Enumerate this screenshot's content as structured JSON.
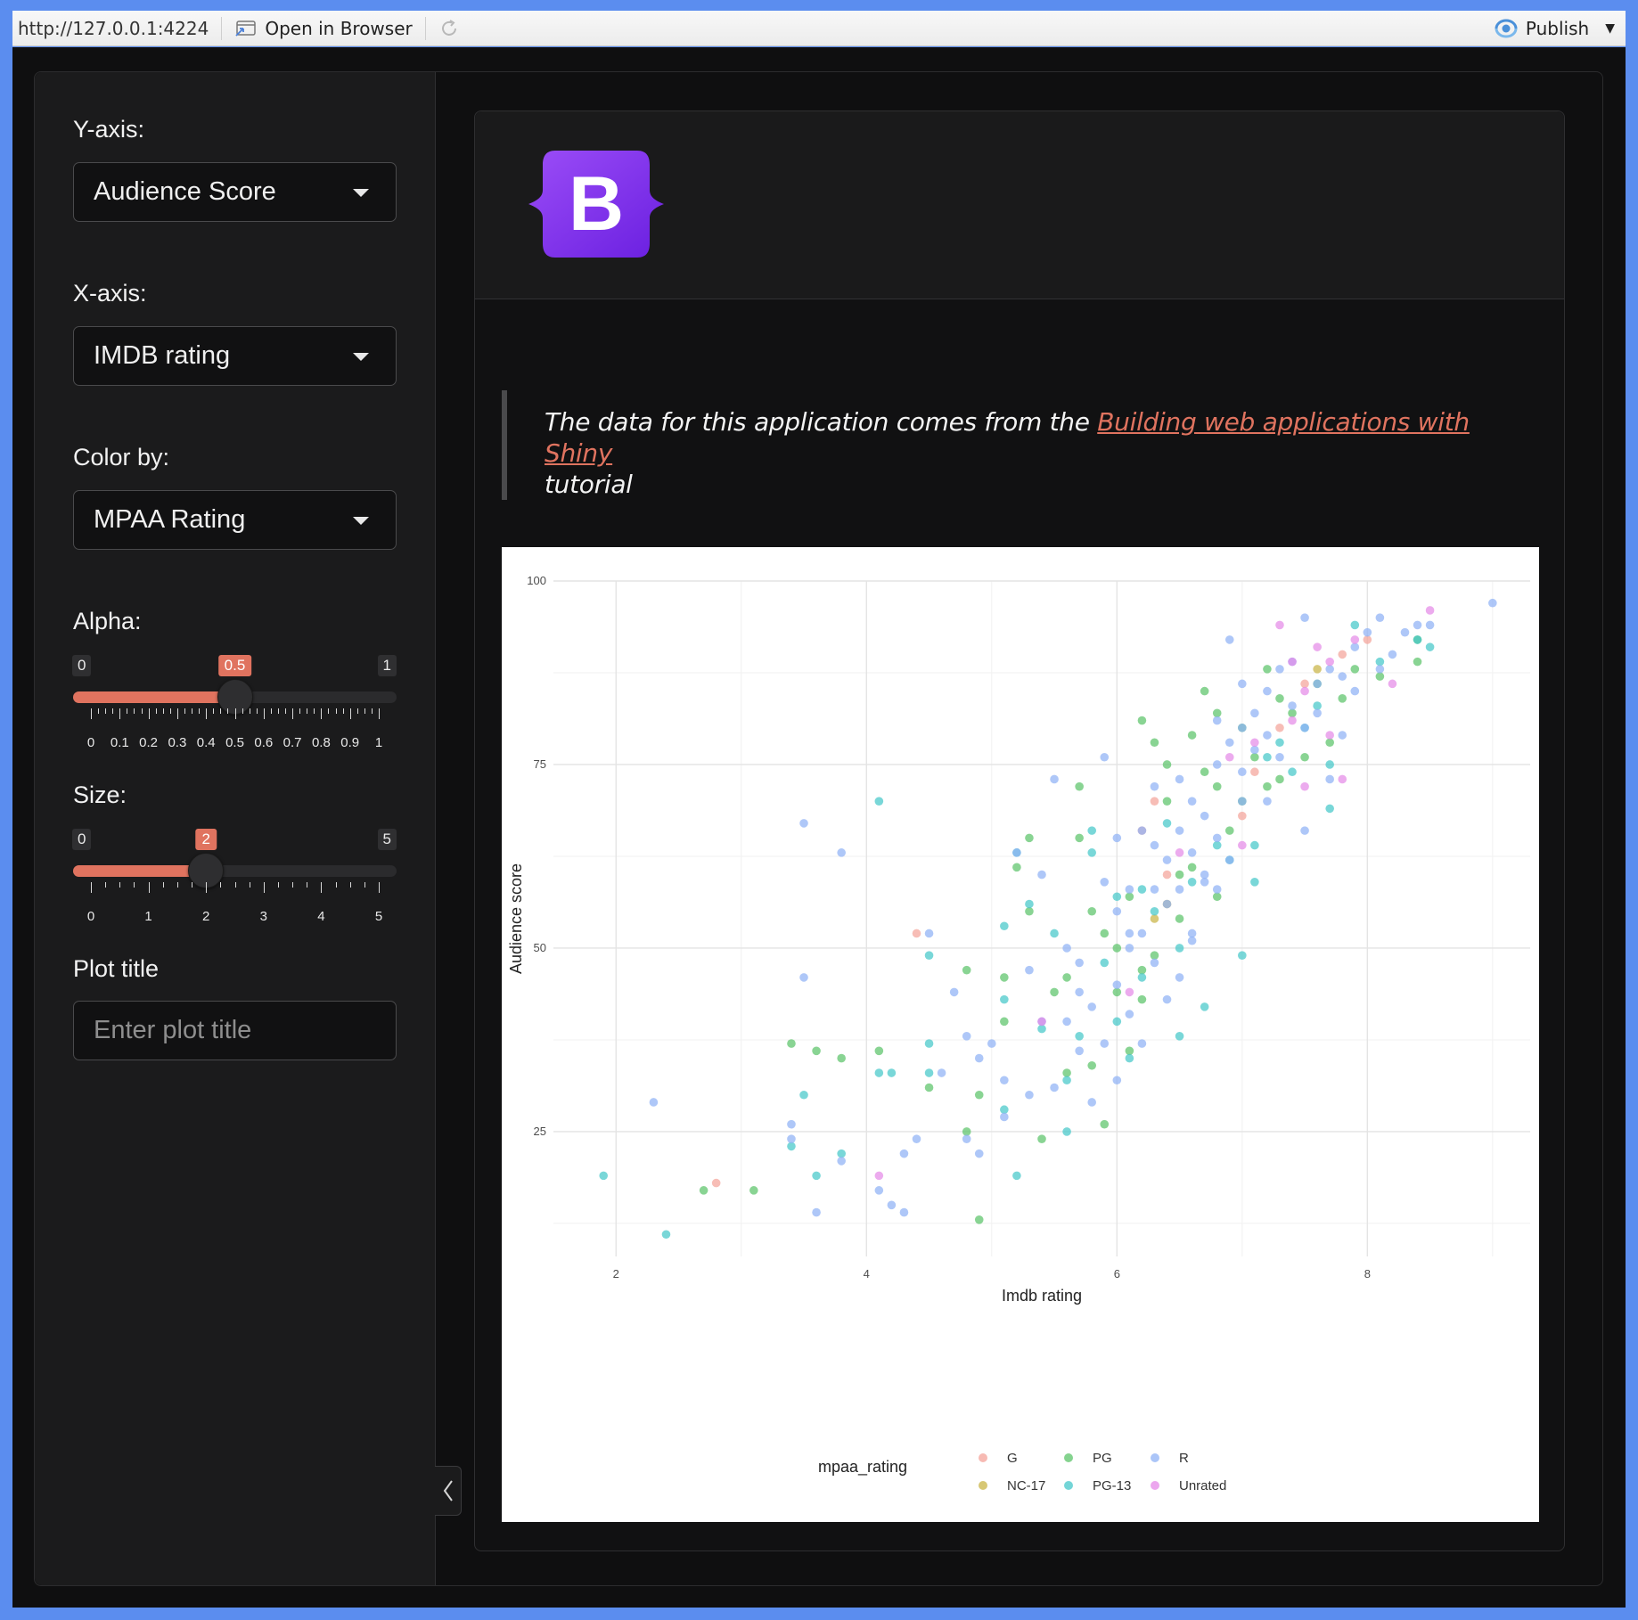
{
  "toolbar": {
    "url": "http://127.0.0.1:4224",
    "open_label": "Open in Browser",
    "publish_label": "Publish"
  },
  "sidebar": {
    "y_axis": {
      "label": "Y-axis:",
      "value": "Audience Score"
    },
    "x_axis": {
      "label": "X-axis:",
      "value": "IMDB rating"
    },
    "color_by": {
      "label": "Color by:",
      "value": "MPAA Rating"
    },
    "alpha": {
      "label": "Alpha:",
      "min": "0",
      "max": "1",
      "value": 0.5,
      "value_label": "0.5",
      "ticks": [
        "0",
        "0.1",
        "0.2",
        "0.3",
        "0.4",
        "0.5",
        "0.6",
        "0.7",
        "0.8",
        "0.9",
        "1"
      ]
    },
    "size": {
      "label": "Size:",
      "min": "0",
      "max": "5",
      "value": 2,
      "value_label": "2",
      "ticks": [
        "0",
        "1",
        "2",
        "3",
        "4",
        "5"
      ]
    },
    "plot_title": {
      "label": "Plot title",
      "placeholder": "Enter plot title",
      "value": ""
    }
  },
  "main": {
    "logo_letter": "B",
    "quote_text": "The data for this application comes from the ",
    "quote_link": "Building web applications with Shiny",
    "quote_tail": "tutorial"
  },
  "colors": {
    "accent": "#e0735f",
    "G": "#f4a39a",
    "NC-17": "#c9b445",
    "PG": "#5cc46a",
    "PG-13": "#45c7c9",
    "R": "#8fb2f5",
    "Unrated": "#e58ae8"
  },
  "chart_data": {
    "type": "scatter",
    "xlabel": "Imdb rating",
    "ylabel": "Audience score",
    "xlim": [
      1.5,
      9.3
    ],
    "ylim": [
      8,
      100
    ],
    "x_ticks": [
      2,
      4,
      6,
      8
    ],
    "y_ticks": [
      25,
      50,
      75,
      100
    ],
    "grid": true,
    "legend_title": "mpaa_rating",
    "legend_position": "bottom",
    "legend": [
      "G",
      "NC-17",
      "PG",
      "PG-13",
      "R",
      "Unrated"
    ],
    "series": [
      {
        "name": "G",
        "points": [
          [
            2.8,
            18
          ],
          [
            4.4,
            52
          ],
          [
            6.3,
            70
          ],
          [
            6.2,
            66
          ],
          [
            7.0,
            68
          ],
          [
            7.3,
            80
          ],
          [
            7.8,
            90
          ],
          [
            8.0,
            92
          ],
          [
            7.5,
            86
          ],
          [
            6.4,
            60
          ],
          [
            7.1,
            74
          ]
        ]
      },
      {
        "name": "NC-17",
        "points": [
          [
            6.4,
            56
          ],
          [
            6.3,
            54
          ],
          [
            7.6,
            88
          ]
        ]
      },
      {
        "name": "PG",
        "points": [
          [
            2.7,
            17
          ],
          [
            3.1,
            17
          ],
          [
            3.4,
            37
          ],
          [
            3.6,
            36
          ],
          [
            3.8,
            35
          ],
          [
            4.1,
            36
          ],
          [
            4.5,
            31
          ],
          [
            4.8,
            47
          ],
          [
            4.8,
            25
          ],
          [
            4.9,
            30
          ],
          [
            4.9,
            13
          ],
          [
            5.1,
            46
          ],
          [
            5.1,
            40
          ],
          [
            5.2,
            61
          ],
          [
            5.3,
            65
          ],
          [
            5.3,
            55
          ],
          [
            5.4,
            24
          ],
          [
            5.5,
            44
          ],
          [
            5.6,
            33
          ],
          [
            5.7,
            72
          ],
          [
            5.7,
            65
          ],
          [
            5.8,
            34
          ],
          [
            5.8,
            55
          ],
          [
            5.9,
            26
          ],
          [
            5.9,
            52
          ],
          [
            6.0,
            44
          ],
          [
            6.1,
            36
          ],
          [
            6.1,
            57
          ],
          [
            6.2,
            43
          ],
          [
            6.2,
            81
          ],
          [
            6.3,
            78
          ],
          [
            6.4,
            75
          ],
          [
            6.4,
            70
          ],
          [
            6.5,
            60
          ],
          [
            6.5,
            54
          ],
          [
            6.6,
            79
          ],
          [
            6.6,
            61
          ],
          [
            6.7,
            74
          ],
          [
            6.7,
            85
          ],
          [
            6.8,
            82
          ],
          [
            6.8,
            72
          ],
          [
            6.9,
            66
          ],
          [
            7.0,
            70
          ],
          [
            7.0,
            80
          ],
          [
            7.1,
            76
          ],
          [
            7.2,
            88
          ],
          [
            7.3,
            84
          ],
          [
            7.3,
            73
          ],
          [
            7.4,
            82
          ],
          [
            7.5,
            76
          ],
          [
            7.6,
            86
          ],
          [
            7.7,
            78
          ],
          [
            7.8,
            84
          ],
          [
            7.9,
            88
          ],
          [
            8.1,
            87
          ],
          [
            8.4,
            89
          ],
          [
            8.4,
            92
          ],
          [
            6.0,
            50
          ],
          [
            6.2,
            47
          ],
          [
            6.3,
            49
          ],
          [
            5.6,
            46
          ],
          [
            6.8,
            57
          ],
          [
            7.2,
            72
          ]
        ]
      },
      {
        "name": "PG-13",
        "points": [
          [
            1.9,
            19
          ],
          [
            2.4,
            11
          ],
          [
            3.4,
            23
          ],
          [
            3.5,
            30
          ],
          [
            3.6,
            19
          ],
          [
            3.8,
            22
          ],
          [
            4.1,
            70
          ],
          [
            4.1,
            33
          ],
          [
            4.2,
            33
          ],
          [
            4.5,
            49
          ],
          [
            4.5,
            37
          ],
          [
            4.5,
            33
          ],
          [
            5.1,
            53
          ],
          [
            5.1,
            43
          ],
          [
            5.1,
            28
          ],
          [
            5.2,
            63
          ],
          [
            5.2,
            19
          ],
          [
            5.3,
            56
          ],
          [
            5.4,
            39
          ],
          [
            5.5,
            52
          ],
          [
            5.6,
            32
          ],
          [
            5.6,
            25
          ],
          [
            5.7,
            38
          ],
          [
            5.8,
            66
          ],
          [
            5.8,
            63
          ],
          [
            5.9,
            48
          ],
          [
            6.0,
            57
          ],
          [
            6.0,
            40
          ],
          [
            6.1,
            35
          ],
          [
            6.2,
            58
          ],
          [
            6.2,
            46
          ],
          [
            6.3,
            55
          ],
          [
            6.4,
            67
          ],
          [
            6.5,
            50
          ],
          [
            6.5,
            38
          ],
          [
            6.6,
            59
          ],
          [
            6.7,
            42
          ],
          [
            6.8,
            64
          ],
          [
            6.9,
            62
          ],
          [
            7.0,
            49
          ],
          [
            7.1,
            59
          ],
          [
            7.1,
            64
          ],
          [
            7.2,
            76
          ],
          [
            7.3,
            78
          ],
          [
            7.4,
            74
          ],
          [
            7.5,
            80
          ],
          [
            7.6,
            83
          ],
          [
            7.7,
            69
          ],
          [
            7.7,
            75
          ],
          [
            7.9,
            94
          ],
          [
            8.1,
            89
          ],
          [
            8.4,
            92
          ],
          [
            8.5,
            91
          ]
        ]
      },
      {
        "name": "R",
        "points": [
          [
            2.3,
            29
          ],
          [
            3.4,
            26
          ],
          [
            3.4,
            24
          ],
          [
            3.5,
            67
          ],
          [
            3.5,
            46
          ],
          [
            3.6,
            14
          ],
          [
            3.8,
            63
          ],
          [
            3.8,
            21
          ],
          [
            4.1,
            17
          ],
          [
            4.2,
            15
          ],
          [
            4.3,
            14
          ],
          [
            4.3,
            22
          ],
          [
            4.4,
            24
          ],
          [
            4.5,
            52
          ],
          [
            4.6,
            33
          ],
          [
            4.7,
            44
          ],
          [
            4.8,
            38
          ],
          [
            4.8,
            24
          ],
          [
            4.9,
            35
          ],
          [
            4.9,
            22
          ],
          [
            5.0,
            37
          ],
          [
            5.1,
            32
          ],
          [
            5.1,
            27
          ],
          [
            5.2,
            63
          ],
          [
            5.3,
            47
          ],
          [
            5.3,
            30
          ],
          [
            5.4,
            60
          ],
          [
            5.4,
            40
          ],
          [
            5.5,
            73
          ],
          [
            5.5,
            31
          ],
          [
            5.6,
            40
          ],
          [
            5.6,
            50
          ],
          [
            5.7,
            36
          ],
          [
            5.7,
            48
          ],
          [
            5.8,
            29
          ],
          [
            5.8,
            42
          ],
          [
            5.9,
            76
          ],
          [
            5.9,
            59
          ],
          [
            5.9,
            37
          ],
          [
            6.0,
            65
          ],
          [
            6.0,
            55
          ],
          [
            6.0,
            45
          ],
          [
            6.0,
            32
          ],
          [
            6.1,
            58
          ],
          [
            6.1,
            50
          ],
          [
            6.1,
            41
          ],
          [
            6.2,
            66
          ],
          [
            6.2,
            52
          ],
          [
            6.2,
            37
          ],
          [
            6.3,
            72
          ],
          [
            6.3,
            64
          ],
          [
            6.3,
            48
          ],
          [
            6.4,
            62
          ],
          [
            6.4,
            56
          ],
          [
            6.4,
            43
          ],
          [
            6.5,
            73
          ],
          [
            6.5,
            66
          ],
          [
            6.5,
            58
          ],
          [
            6.5,
            46
          ],
          [
            6.6,
            70
          ],
          [
            6.6,
            63
          ],
          [
            6.6,
            51
          ],
          [
            6.7,
            68
          ],
          [
            6.7,
            60
          ],
          [
            6.8,
            81
          ],
          [
            6.8,
            75
          ],
          [
            6.8,
            65
          ],
          [
            6.9,
            78
          ],
          [
            6.9,
            62
          ],
          [
            7.0,
            80
          ],
          [
            7.0,
            74
          ],
          [
            7.0,
            70
          ],
          [
            7.1,
            82
          ],
          [
            7.1,
            77
          ],
          [
            7.2,
            79
          ],
          [
            7.2,
            85
          ],
          [
            7.3,
            76
          ],
          [
            7.3,
            88
          ],
          [
            7.4,
            83
          ],
          [
            7.4,
            89
          ],
          [
            7.5,
            80
          ],
          [
            7.5,
            95
          ],
          [
            7.5,
            66
          ],
          [
            7.6,
            86
          ],
          [
            7.6,
            82
          ],
          [
            7.7,
            88
          ],
          [
            7.7,
            73
          ],
          [
            7.8,
            87
          ],
          [
            7.8,
            79
          ],
          [
            7.9,
            91
          ],
          [
            7.9,
            85
          ],
          [
            8.0,
            93
          ],
          [
            8.1,
            95
          ],
          [
            8.1,
            88
          ],
          [
            8.2,
            90
          ],
          [
            8.3,
            93
          ],
          [
            8.4,
            94
          ],
          [
            8.5,
            94
          ],
          [
            9.0,
            97
          ],
          [
            6.9,
            92
          ],
          [
            7.0,
            86
          ],
          [
            6.7,
            59
          ],
          [
            6.3,
            58
          ],
          [
            6.1,
            52
          ],
          [
            5.7,
            44
          ],
          [
            6.6,
            52
          ],
          [
            6.8,
            58
          ],
          [
            7.2,
            70
          ]
        ]
      },
      {
        "name": "Unrated",
        "points": [
          [
            4.1,
            19
          ],
          [
            5.4,
            40
          ],
          [
            6.1,
            44
          ],
          [
            6.5,
            63
          ],
          [
            7.0,
            64
          ],
          [
            7.3,
            94
          ],
          [
            7.4,
            89
          ],
          [
            7.5,
            85
          ],
          [
            7.6,
            91
          ],
          [
            7.7,
            89
          ],
          [
            7.8,
            73
          ],
          [
            7.9,
            92
          ],
          [
            8.2,
            86
          ],
          [
            8.5,
            96
          ],
          [
            7.1,
            78
          ],
          [
            6.9,
            76
          ],
          [
            7.4,
            81
          ],
          [
            7.7,
            79
          ],
          [
            7.5,
            72
          ]
        ]
      }
    ]
  }
}
